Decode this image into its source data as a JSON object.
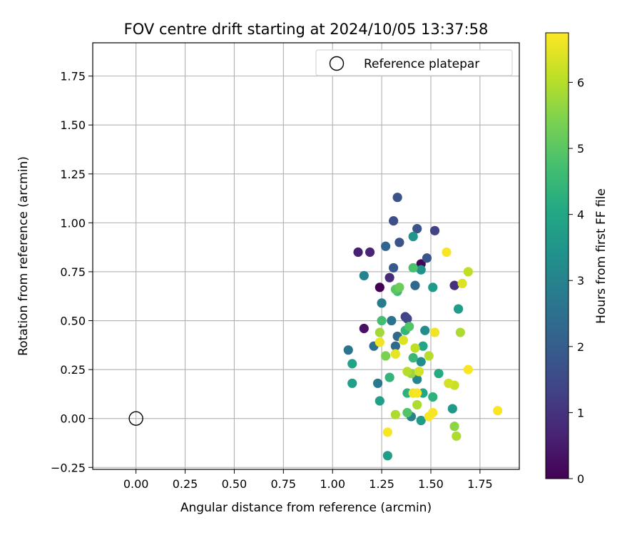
{
  "chart_data": {
    "type": "scatter",
    "title": "FOV centre drift starting at 2024/10/05 13:37:58",
    "xlabel": "Angular distance from reference (arcmin)",
    "ylabel": "Rotation from reference (arcmin)",
    "xlim": [
      -0.22,
      1.95
    ],
    "ylim": [
      -0.26,
      1.92
    ],
    "xticks": [
      "0.00",
      "0.25",
      "0.50",
      "0.75",
      "1.00",
      "1.25",
      "1.50",
      "1.75"
    ],
    "yticks": [
      "−0.25",
      "0.00",
      "0.25",
      "0.50",
      "0.75",
      "1.00",
      "1.25",
      "1.50",
      "1.75"
    ],
    "grid": true,
    "legend": {
      "placement": "top-right",
      "entries": [
        "Reference platepar"
      ]
    },
    "reference_point": {
      "x": 0.0,
      "y": 0.0
    },
    "colorbar": {
      "label": "Hours from first FF file",
      "min": 0,
      "max": 6.75,
      "ticks": [
        "0",
        "1",
        "2",
        "3",
        "4",
        "5",
        "6"
      ],
      "colormap": "viridis"
    },
    "series": [
      {
        "points": [
          {
            "x": 1.24,
            "y": 0.67,
            "h": 0.0
          },
          {
            "x": 1.45,
            "y": 0.79,
            "h": 0.1
          },
          {
            "x": 1.16,
            "y": 0.46,
            "h": 0.3
          },
          {
            "x": 1.13,
            "y": 0.85,
            "h": 0.6
          },
          {
            "x": 1.19,
            "y": 0.85,
            "h": 0.7
          },
          {
            "x": 1.29,
            "y": 0.72,
            "h": 0.8
          },
          {
            "x": 1.62,
            "y": 0.68,
            "h": 0.9
          },
          {
            "x": 1.52,
            "y": 0.96,
            "h": 1.3
          },
          {
            "x": 1.37,
            "y": 0.52,
            "h": 1.3
          },
          {
            "x": 1.38,
            "y": 0.51,
            "h": 1.4
          },
          {
            "x": 1.31,
            "y": 1.01,
            "h": 1.6
          },
          {
            "x": 1.33,
            "y": 1.13,
            "h": 1.7
          },
          {
            "x": 1.43,
            "y": 0.97,
            "h": 1.7
          },
          {
            "x": 1.34,
            "y": 0.9,
            "h": 1.7
          },
          {
            "x": 1.48,
            "y": 0.82,
            "h": 1.8
          },
          {
            "x": 1.31,
            "y": 0.77,
            "h": 1.9
          },
          {
            "x": 1.27,
            "y": 0.88,
            "h": 2.2
          },
          {
            "x": 1.33,
            "y": 0.42,
            "h": 2.3
          },
          {
            "x": 1.32,
            "y": 0.37,
            "h": 2.3
          },
          {
            "x": 1.42,
            "y": 0.68,
            "h": 2.3
          },
          {
            "x": 1.21,
            "y": 0.37,
            "h": 2.5
          },
          {
            "x": 1.08,
            "y": 0.35,
            "h": 2.6
          },
          {
            "x": 1.3,
            "y": 0.5,
            "h": 2.6
          },
          {
            "x": 1.23,
            "y": 0.18,
            "h": 2.7
          },
          {
            "x": 1.25,
            "y": 0.59,
            "h": 2.8
          },
          {
            "x": 1.16,
            "y": 0.73,
            "h": 3.0
          },
          {
            "x": 1.4,
            "y": 0.01,
            "h": 3.0
          },
          {
            "x": 1.43,
            "y": 0.2,
            "h": 3.1
          },
          {
            "x": 1.45,
            "y": 0.29,
            "h": 3.3
          },
          {
            "x": 1.47,
            "y": 0.45,
            "h": 3.3
          },
          {
            "x": 1.45,
            "y": 0.76,
            "h": 3.4
          },
          {
            "x": 1.41,
            "y": 0.93,
            "h": 3.5
          },
          {
            "x": 1.51,
            "y": 0.67,
            "h": 3.6
          },
          {
            "x": 1.61,
            "y": 0.05,
            "h": 3.6
          },
          {
            "x": 1.64,
            "y": 0.56,
            "h": 3.7
          },
          {
            "x": 1.28,
            "y": -0.19,
            "h": 3.7
          },
          {
            "x": 1.45,
            "y": -0.01,
            "h": 3.7
          },
          {
            "x": 1.24,
            "y": 0.09,
            "h": 3.8
          },
          {
            "x": 1.1,
            "y": 0.18,
            "h": 3.8
          },
          {
            "x": 1.1,
            "y": 0.28,
            "h": 3.9
          },
          {
            "x": 1.46,
            "y": 0.37,
            "h": 4.0
          },
          {
            "x": 1.46,
            "y": 0.13,
            "h": 4.0
          },
          {
            "x": 1.54,
            "y": 0.23,
            "h": 4.1
          },
          {
            "x": 1.51,
            "y": 0.11,
            "h": 4.3
          },
          {
            "x": 1.38,
            "y": 0.13,
            "h": 4.3
          },
          {
            "x": 1.29,
            "y": 0.21,
            "h": 4.4
          },
          {
            "x": 1.37,
            "y": 0.45,
            "h": 4.4
          },
          {
            "x": 1.41,
            "y": 0.31,
            "h": 4.5
          },
          {
            "x": 1.33,
            "y": 0.65,
            "h": 4.6
          },
          {
            "x": 1.25,
            "y": 0.5,
            "h": 4.7
          },
          {
            "x": 1.41,
            "y": 0.77,
            "h": 4.8
          },
          {
            "x": 1.39,
            "y": 0.47,
            "h": 4.9
          },
          {
            "x": 1.38,
            "y": 0.03,
            "h": 4.9
          },
          {
            "x": 1.32,
            "y": 0.66,
            "h": 5.0
          },
          {
            "x": 1.34,
            "y": 0.67,
            "h": 5.2
          },
          {
            "x": 1.27,
            "y": 0.32,
            "h": 5.4
          },
          {
            "x": 1.62,
            "y": -0.04,
            "h": 5.6
          },
          {
            "x": 1.4,
            "y": 0.23,
            "h": 5.7
          },
          {
            "x": 1.24,
            "y": 0.44,
            "h": 5.8
          },
          {
            "x": 1.32,
            "y": 0.02,
            "h": 5.9
          },
          {
            "x": 1.63,
            "y": -0.09,
            "h": 5.9
          },
          {
            "x": 1.65,
            "y": 0.44,
            "h": 5.9
          },
          {
            "x": 1.43,
            "y": 0.07,
            "h": 5.9
          },
          {
            "x": 1.49,
            "y": 0.32,
            "h": 6.0
          },
          {
            "x": 1.38,
            "y": 0.24,
            "h": 6.0
          },
          {
            "x": 1.42,
            "y": 0.36,
            "h": 6.1
          },
          {
            "x": 1.69,
            "y": 0.75,
            "h": 6.1
          },
          {
            "x": 1.62,
            "y": 0.17,
            "h": 6.2
          },
          {
            "x": 1.59,
            "y": 0.18,
            "h": 6.3
          },
          {
            "x": 1.44,
            "y": 0.24,
            "h": 6.3
          },
          {
            "x": 1.36,
            "y": 0.4,
            "h": 6.4
          },
          {
            "x": 1.66,
            "y": 0.69,
            "h": 6.4
          },
          {
            "x": 1.32,
            "y": 0.33,
            "h": 6.5
          },
          {
            "x": 1.52,
            "y": 0.44,
            "h": 6.6
          },
          {
            "x": 1.24,
            "y": 0.39,
            "h": 6.6
          },
          {
            "x": 1.41,
            "y": 0.13,
            "h": 6.6
          },
          {
            "x": 1.43,
            "y": 0.13,
            "h": 6.7
          },
          {
            "x": 1.49,
            "y": 0.01,
            "h": 6.7
          },
          {
            "x": 1.51,
            "y": 0.03,
            "h": 6.7
          },
          {
            "x": 1.58,
            "y": 0.85,
            "h": 6.7
          },
          {
            "x": 1.69,
            "y": 0.25,
            "h": 6.7
          },
          {
            "x": 1.28,
            "y": -0.07,
            "h": 6.7
          },
          {
            "x": 1.84,
            "y": 0.04,
            "h": 6.7
          }
        ]
      }
    ]
  }
}
